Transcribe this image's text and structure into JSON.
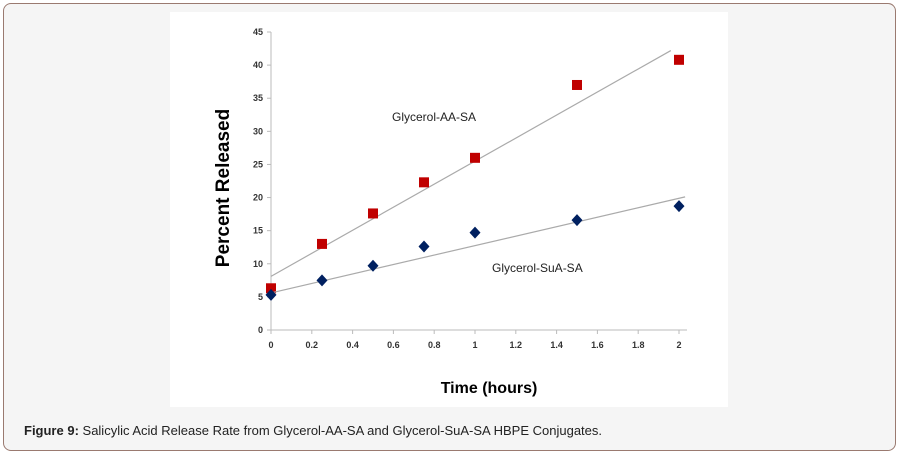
{
  "caption": {
    "label": "Figure 9:",
    "text": " Salicylic Acid Release Rate from Glycerol-AA-SA and Glycerol-SuA-SA HBPE Conjugates."
  },
  "chart_data": {
    "type": "scatter",
    "title": "",
    "xlabel": "Time (hours)",
    "ylabel": "Percent Released",
    "xlim": [
      0,
      2
    ],
    "ylim": [
      0,
      45
    ],
    "xticks": [
      "0",
      "0.2",
      "0.4",
      "0.6",
      "0.8",
      "1",
      "1.2",
      "1.4",
      "1.6",
      "1.8",
      "2"
    ],
    "yticks": [
      "0",
      "5",
      "10",
      "15",
      "20",
      "25",
      "30",
      "35",
      "40",
      "45"
    ],
    "grid": false,
    "series": [
      {
        "name": "Glycerol-AA-SA",
        "marker": "square",
        "color": "#c00000",
        "x": [
          0,
          0.25,
          0.5,
          0.75,
          1,
          1.5,
          2
        ],
        "y": [
          6.3,
          13,
          17.6,
          22.3,
          26,
          37,
          40.8
        ],
        "trendline": {
          "x": [
            0,
            1.96
          ],
          "y": [
            8.1,
            42.2
          ]
        }
      },
      {
        "name": "Glycerol-SuA-SA",
        "marker": "diamond",
        "color": "#002060",
        "x": [
          0,
          0.25,
          0.5,
          0.75,
          1,
          1.5,
          2
        ],
        "y": [
          5.3,
          7.5,
          9.7,
          12.6,
          14.7,
          16.6,
          18.7
        ],
        "trendline": {
          "x": [
            0,
            2.03
          ],
          "y": [
            5.6,
            20.1
          ]
        }
      }
    ]
  }
}
